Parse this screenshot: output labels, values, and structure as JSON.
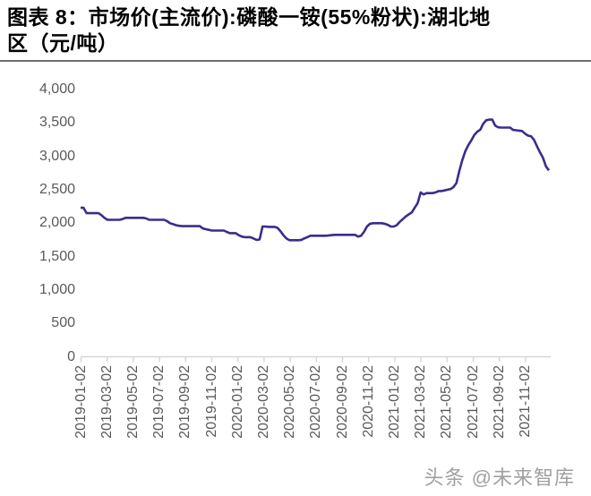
{
  "page": {
    "title_lines": [
      "图表 8：市场价(主流价):磷酸一铵(55%粉状):湖北地",
      "区（元/吨）"
    ],
    "watermark": "头条 @未来智库"
  },
  "colors": {
    "line": "#3d2b8d",
    "axis": "#d6d6d6",
    "tick_label": "#595959",
    "divider": "#6f6f6f",
    "watermark": "#a0a0a0",
    "title": "#000000",
    "background": "#ffffff"
  },
  "chart_data": {
    "type": "line",
    "title": "市场价(主流价):磷酸一铵(55%粉状):湖北地区（元/吨）",
    "series_name": "市场价(主流价):磷酸一铵(55%粉状):湖北地区",
    "unit": "元/吨",
    "xlabel": "",
    "ylabel": "",
    "ylim": [
      0,
      4000
    ],
    "y_tick_labels": [
      "4,000",
      "3,500",
      "3,000",
      "2,500",
      "2,000",
      "1,500",
      "1,000",
      "500",
      "0"
    ],
    "y_tick_values": [
      4000,
      3500,
      3000,
      2500,
      2000,
      1500,
      1000,
      500,
      0
    ],
    "x_tick_labels": [
      "2019-01-02",
      "2019-03-02",
      "2019-05-02",
      "2019-07-02",
      "2019-09-02",
      "2019-11-02",
      "2020-01-02",
      "2020-03-02",
      "2020-05-02",
      "2020-07-02",
      "2020-09-02",
      "2020-11-02",
      "2021-01-02",
      "2021-03-02",
      "2021-05-02",
      "2021-07-02",
      "2021-09-02",
      "2021-11-02"
    ],
    "x_start_date": "2019-01-02",
    "x_step_days": 7,
    "grid": false,
    "legend_position": "none",
    "values": [
      2230,
      2230,
      2150,
      2150,
      2150,
      2150,
      2150,
      2120,
      2080,
      2050,
      2050,
      2050,
      2050,
      2050,
      2060,
      2080,
      2080,
      2080,
      2080,
      2080,
      2080,
      2080,
      2070,
      2050,
      2050,
      2050,
      2050,
      2050,
      2050,
      2030,
      2000,
      1985,
      1970,
      1960,
      1955,
      1955,
      1955,
      1955,
      1955,
      1955,
      1955,
      1920,
      1910,
      1900,
      1890,
      1890,
      1890,
      1890,
      1890,
      1870,
      1850,
      1850,
      1850,
      1820,
      1800,
      1790,
      1790,
      1790,
      1770,
      1750,
      1755,
      1950,
      1950,
      1945,
      1945,
      1945,
      1930,
      1880,
      1820,
      1770,
      1745,
      1745,
      1745,
      1745,
      1750,
      1772,
      1790,
      1812,
      1812,
      1812,
      1812,
      1812,
      1812,
      1815,
      1820,
      1825,
      1825,
      1825,
      1825,
      1825,
      1825,
      1825,
      1825,
      1800,
      1810,
      1870,
      1950,
      1990,
      2000,
      2000,
      2000,
      2000,
      1990,
      1975,
      1950,
      1950,
      1970,
      2020,
      2060,
      2100,
      2130,
      2160,
      2230,
      2300,
      2460,
      2430,
      2450,
      2450,
      2450,
      2460,
      2480,
      2480,
      2490,
      2500,
      2510,
      2540,
      2600,
      2790,
      2950,
      3080,
      3170,
      3240,
      3320,
      3370,
      3400,
      3490,
      3540,
      3550,
      3550,
      3460,
      3435,
      3430,
      3430,
      3430,
      3430,
      3395,
      3390,
      3385,
      3380,
      3340,
      3310,
      3300,
      3250,
      3150,
      3060,
      2980,
      2850,
      2790
    ]
  }
}
